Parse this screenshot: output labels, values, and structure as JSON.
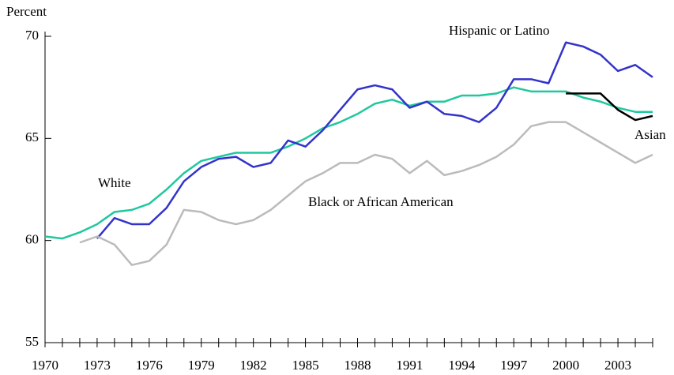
{
  "chart_data": {
    "type": "line",
    "ylabel": "Percent",
    "x": [
      1970,
      1971,
      1972,
      1973,
      1974,
      1975,
      1976,
      1977,
      1978,
      1979,
      1980,
      1981,
      1982,
      1983,
      1984,
      1985,
      1986,
      1987,
      1988,
      1989,
      1990,
      1991,
      1992,
      1993,
      1994,
      1995,
      1996,
      1997,
      1998,
      1999,
      2000,
      2001,
      2002,
      2003,
      2004,
      2005
    ],
    "xlim": [
      1970,
      2005
    ],
    "xticks": [
      1970,
      1973,
      1976,
      1979,
      1982,
      1985,
      1988,
      1991,
      1994,
      1997,
      2000,
      2003
    ],
    "ylim": [
      55,
      70
    ],
    "yticks": [
      55,
      60,
      65,
      70
    ],
    "series": [
      {
        "name": "White",
        "color": "#1fc89e",
        "values": [
          60.2,
          60.1,
          60.4,
          60.8,
          61.4,
          61.5,
          61.8,
          62.5,
          63.3,
          63.9,
          64.1,
          64.3,
          64.3,
          64.3,
          64.6,
          65.0,
          65.5,
          65.8,
          66.2,
          66.7,
          66.9,
          66.6,
          66.8,
          66.8,
          67.1,
          67.1,
          67.2,
          67.5,
          67.3,
          67.3,
          67.3,
          67.0,
          66.8,
          66.5,
          66.3,
          66.3
        ]
      },
      {
        "name": "Hispanic or Latino",
        "color": "#3333cc",
        "values": [
          null,
          null,
          null,
          60.1,
          61.1,
          60.8,
          60.8,
          61.6,
          62.9,
          63.6,
          64.0,
          64.1,
          63.6,
          63.8,
          64.9,
          64.6,
          65.4,
          66.4,
          67.4,
          67.6,
          67.4,
          66.5,
          66.8,
          66.2,
          66.1,
          65.8,
          66.5,
          67.9,
          67.9,
          67.7,
          69.7,
          69.5,
          69.1,
          68.3,
          68.6,
          68.0
        ]
      },
      {
        "name": "Black or African American",
        "color": "#bbbbbb",
        "values": [
          null,
          null,
          59.9,
          60.2,
          59.8,
          58.8,
          59.0,
          59.8,
          61.5,
          61.4,
          61.0,
          60.8,
          61.0,
          61.5,
          62.2,
          62.9,
          63.3,
          63.8,
          63.8,
          64.2,
          64.0,
          63.3,
          63.9,
          63.2,
          63.4,
          63.7,
          64.1,
          64.7,
          65.6,
          65.8,
          65.8,
          65.3,
          64.8,
          64.3,
          63.8,
          64.2
        ]
      },
      {
        "name": "Asian",
        "color": "#000000",
        "values": [
          null,
          null,
          null,
          null,
          null,
          null,
          null,
          null,
          null,
          null,
          null,
          null,
          null,
          null,
          null,
          null,
          null,
          null,
          null,
          null,
          null,
          null,
          null,
          null,
          null,
          null,
          null,
          null,
          null,
          null,
          67.2,
          67.2,
          67.2,
          66.4,
          65.9,
          66.1
        ]
      }
    ]
  }
}
